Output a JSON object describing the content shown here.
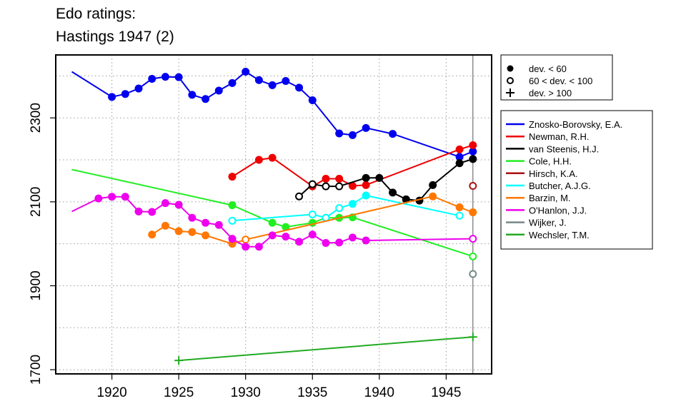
{
  "chart_data": {
    "type": "line",
    "title": [
      "Edo ratings:",
      "Hastings 1947 (2)"
    ],
    "xlabel": "",
    "ylabel": "",
    "xlim": [
      1915.8,
      1948.4
    ],
    "ylim": [
      1690,
      2450
    ],
    "xticks": [
      1920,
      1925,
      1930,
      1935,
      1940,
      1945
    ],
    "yticks": [
      1700,
      1900,
      2100,
      2300
    ],
    "grid": true,
    "highlight_year": 1947,
    "markers_legend": [
      {
        "symbol": "filled-circle",
        "label": "dev. < 60"
      },
      {
        "symbol": "open-circle",
        "label": "60 < dev. < 100"
      },
      {
        "symbol": "plus",
        "label": "dev. > 100"
      }
    ],
    "series": [
      {
        "name": "Znosko-Borovsky, E.A.",
        "color": "#0000ee",
        "x": [
          1917,
          1920,
          1921,
          1922,
          1923,
          1924,
          1925,
          1926,
          1927,
          1928,
          1929,
          1930,
          1931,
          1932,
          1933,
          1934,
          1935,
          1937,
          1938,
          1939,
          1941,
          1946,
          1947
        ],
        "y": [
          2410,
          2350,
          2357,
          2370,
          2393,
          2398,
          2397,
          2355,
          2345,
          2365,
          2383,
          2410,
          2390,
          2378,
          2388,
          2372,
          2342,
          2263,
          2259,
          2276,
          2262,
          2207,
          2220
        ],
        "markers": [
          "none",
          "filled",
          "filled",
          "filled",
          "filled",
          "filled",
          "filled",
          "filled",
          "filled",
          "filled",
          "filled",
          "filled",
          "filled",
          "filled",
          "filled",
          "filled",
          "filled",
          "filled",
          "filled",
          "filled",
          "filled",
          "filled",
          "filled"
        ]
      },
      {
        "name": "Newman, R.H.",
        "color": "#ee0000",
        "x": [
          1929,
          1931,
          1932,
          1935,
          1936,
          1937,
          1938,
          1939,
          1946,
          1947
        ],
        "y": [
          2160,
          2200,
          2205,
          2137,
          2155,
          2155,
          2138,
          2140,
          2225,
          2235
        ],
        "markers": [
          "filled",
          "filled",
          "filled",
          "filled",
          "filled",
          "filled",
          "filled",
          "filled",
          "filled",
          "filled"
        ]
      },
      {
        "name": "van Steenis, H.J.",
        "color": "#000000",
        "x": [
          1934,
          1935,
          1936,
          1937,
          1939,
          1940,
          1941,
          1942,
          1943,
          1944,
          1946,
          1947
        ],
        "y": [
          2113,
          2142,
          2137,
          2137,
          2157,
          2157,
          2122,
          2106,
          2103,
          2140,
          2192,
          2202
        ],
        "markers": [
          "open",
          "open",
          "open",
          "open",
          "filled",
          "filled",
          "filled",
          "filled",
          "filled",
          "filled",
          "filled",
          "filled"
        ]
      },
      {
        "name": "Cole, H.H.",
        "color": "#22ee22",
        "x": [
          1917,
          1929,
          1932,
          1933,
          1935,
          1936,
          1937,
          1938,
          1947
        ],
        "y": [
          2177,
          2092,
          2050,
          2040,
          2050,
          2062,
          2062,
          2063,
          1970
        ],
        "markers": [
          "none",
          "filled",
          "filled",
          "filled",
          "filled",
          "filled",
          "filled",
          "filled",
          "open"
        ]
      },
      {
        "name": "Hirsch, K.A.",
        "color": "#aa1111",
        "x": [
          1947
        ],
        "y": [
          2138
        ],
        "markers": [
          "open"
        ]
      },
      {
        "name": "Butcher, A.J.G.",
        "color": "#00ffff",
        "x": [
          1929,
          1935,
          1936,
          1937,
          1938,
          1939,
          1946
        ],
        "y": [
          2055,
          2070,
          2062,
          2085,
          2095,
          2115,
          2067
        ],
        "markers": [
          "open",
          "open",
          "open",
          "open",
          "filled",
          "filled",
          "open"
        ]
      },
      {
        "name": "Barzin, M.",
        "color": "#ff7700",
        "x": [
          1923,
          1924,
          1925,
          1926,
          1927,
          1929,
          1930,
          1944,
          1946,
          1947
        ],
        "y": [
          2022,
          2043,
          2030,
          2028,
          2020,
          2000,
          2010,
          2113,
          2087,
          2075
        ],
        "markers": [
          "filled",
          "filled",
          "filled",
          "filled",
          "filled",
          "filled",
          "open",
          "filled",
          "filled",
          "filled"
        ]
      },
      {
        "name": "O'Hanlon, J.J.",
        "color": "#ee00ee",
        "x": [
          1917,
          1919,
          1920,
          1921,
          1922,
          1923,
          1924,
          1925,
          1926,
          1927,
          1928,
          1929,
          1930,
          1931,
          1932,
          1933,
          1934,
          1935,
          1936,
          1937,
          1938,
          1939,
          1947
        ],
        "y": [
          2077,
          2108,
          2112,
          2112,
          2077,
          2076,
          2097,
          2093,
          2062,
          2050,
          2045,
          2012,
          1993,
          1993,
          2020,
          2017,
          2005,
          2022,
          2002,
          2003,
          2015,
          2008,
          2012
        ],
        "markers": [
          "none",
          "filled",
          "filled",
          "filled",
          "filled",
          "filled",
          "filled",
          "filled",
          "filled",
          "filled",
          "filled",
          "filled",
          "filled",
          "filled",
          "filled",
          "filled",
          "filled",
          "filled",
          "filled",
          "filled",
          "filled",
          "filled",
          "open"
        ]
      },
      {
        "name": "Wijker, J.",
        "color": "#778888",
        "x": [
          1947
        ],
        "y": [
          1928
        ],
        "markers": [
          "open"
        ]
      },
      {
        "name": "Wechsler, T.M.",
        "color": "#22aa22",
        "x": [
          1925,
          1947
        ],
        "y": [
          1722,
          1778
        ],
        "markers": [
          "plus",
          "plus"
        ]
      }
    ]
  }
}
